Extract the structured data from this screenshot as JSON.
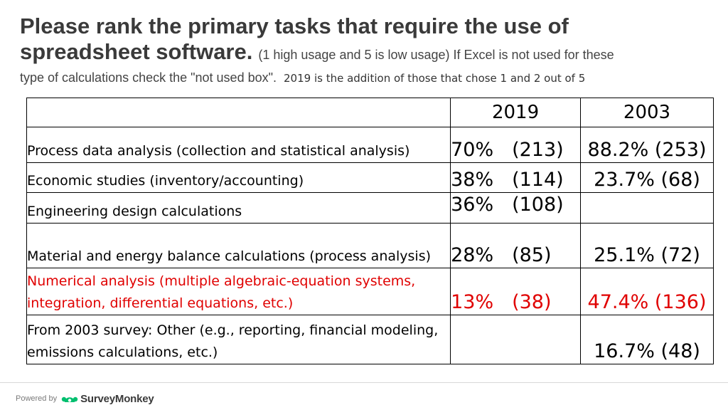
{
  "title": {
    "line1": "Please rank the primary tasks that require the use of",
    "line2_big": "spreadsheet software.",
    "line2_small": "(1 high usage and 5 is low usage)  If Excel is not used for these",
    "line3": "type of calculations check the \"not used box\".",
    "note": "2019 is the addition of those that chose 1 and 2 out of 5"
  },
  "table": {
    "headers": [
      "",
      "2019",
      "2003"
    ],
    "rows": [
      {
        "task": "Process data analysis (collection and statistical analysis)",
        "pct2019": "70%",
        "n2019": "(213)",
        "v2003": "88.2% (253)"
      },
      {
        "task": "Economic studies (inventory/accounting)",
        "pct2019": "38%",
        "n2019": "(114)",
        "v2003": "23.7% (68)"
      },
      {
        "task": "Engineering design calculations",
        "pct2019": "36%",
        "n2019": "(108)",
        "v2003": ""
      },
      {
        "task": "Material and energy balance calculations (process analysis)",
        "pct2019": "28%",
        "n2019": "(85)",
        "v2003": "25.1% (72)"
      },
      {
        "task": "Numerical analysis (multiple algebraic-equation systems, integration, differential equations, etc.)",
        "pct2019": "13%",
        "n2019": "(38)",
        "v2003": "47.4% (136)"
      },
      {
        "task": "From 2003 survey:  Other (e.g., reporting, financial modeling, emissions calculations, etc.)",
        "pct2019": "",
        "n2019": "",
        "v2003": "16.7% (48)"
      }
    ],
    "highlight_color": "#e00000"
  },
  "footer": {
    "powered_by": "Powered by",
    "brand": "SurveyMonkey",
    "brand_icon": "surveymonkey-logo-icon",
    "brand_color": "#00bf6f"
  }
}
